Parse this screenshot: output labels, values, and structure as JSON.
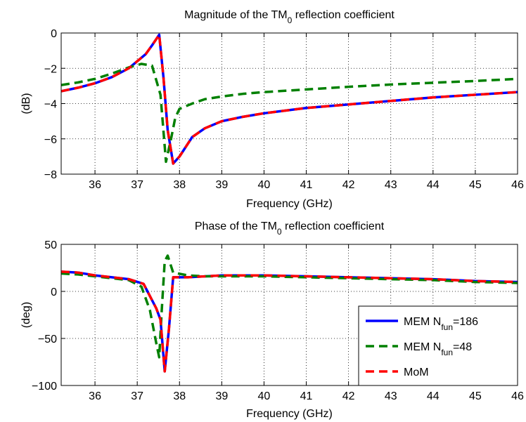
{
  "chart_data": [
    {
      "type": "line",
      "title": "Magnitude of the TM",
      "title_sub": "0",
      "title_suffix": " reflection coefficient",
      "xlabel": "Frequency (GHz)",
      "ylabel": "(dB)",
      "xlim": [
        35.2,
        46
      ],
      "ylim": [
        -8,
        0
      ],
      "xticks": [
        36,
        37,
        38,
        39,
        40,
        41,
        42,
        43,
        44,
        45,
        46
      ],
      "yticks": [
        -8,
        -6,
        -4,
        -2,
        0
      ],
      "ytick_labels": [
        "−8",
        "−6",
        "−4",
        "−2",
        "0"
      ],
      "grid": true,
      "series": [
        {
          "key": "mem186",
          "color": "#0000ff",
          "dash": "solid",
          "x": [
            35.2,
            35.6,
            36.0,
            36.4,
            36.8,
            37.2,
            37.35,
            37.52,
            37.62,
            37.72,
            37.85,
            38.0,
            38.3,
            38.6,
            39.0,
            39.5,
            40.0,
            41.0,
            42.0,
            43.0,
            44.0,
            45.0,
            46.0
          ],
          "y": [
            -3.3,
            -3.1,
            -2.85,
            -2.5,
            -2.0,
            -1.2,
            -0.7,
            -0.1,
            -2.5,
            -5.5,
            -7.4,
            -7.0,
            -5.9,
            -5.4,
            -5.0,
            -4.75,
            -4.55,
            -4.25,
            -4.05,
            -3.85,
            -3.65,
            -3.5,
            -3.35
          ]
        },
        {
          "key": "mem48",
          "color": "#008000",
          "dash": "dashed",
          "x": [
            35.2,
            35.6,
            36.0,
            36.4,
            36.8,
            37.1,
            37.35,
            37.55,
            37.68,
            37.8,
            37.9,
            38.0,
            38.3,
            38.6,
            39.0,
            39.5,
            40.0,
            41.0,
            42.0,
            43.0,
            44.0,
            45.0,
            46.0
          ],
          "y": [
            -2.95,
            -2.8,
            -2.6,
            -2.3,
            -1.95,
            -1.75,
            -1.85,
            -3.5,
            -7.3,
            -6.0,
            -4.8,
            -4.3,
            -4.0,
            -3.75,
            -3.6,
            -3.45,
            -3.35,
            -3.2,
            -3.05,
            -2.92,
            -2.82,
            -2.72,
            -2.6
          ]
        },
        {
          "key": "mom",
          "color": "#ff0000",
          "dash": "dashed",
          "x": [
            35.2,
            35.6,
            36.0,
            36.4,
            36.8,
            37.2,
            37.35,
            37.52,
            37.62,
            37.72,
            37.85,
            38.0,
            38.3,
            38.6,
            39.0,
            39.5,
            40.0,
            41.0,
            42.0,
            43.0,
            44.0,
            45.0,
            46.0
          ],
          "y": [
            -3.3,
            -3.1,
            -2.85,
            -2.5,
            -2.0,
            -1.2,
            -0.7,
            -0.1,
            -2.5,
            -5.5,
            -7.4,
            -7.0,
            -5.9,
            -5.4,
            -5.0,
            -4.75,
            -4.55,
            -4.25,
            -4.05,
            -3.85,
            -3.65,
            -3.5,
            -3.35
          ]
        }
      ]
    },
    {
      "type": "line",
      "title": "Phase of the TM",
      "title_sub": "0",
      "title_suffix": " reflection coefficient",
      "xlabel": "Frequency (GHz)",
      "ylabel": "(deg)",
      "xlim": [
        35.2,
        46
      ],
      "ylim": [
        -100,
        50
      ],
      "xticks": [
        36,
        37,
        38,
        39,
        40,
        41,
        42,
        43,
        44,
        45,
        46
      ],
      "yticks": [
        -100,
        -50,
        0,
        50
      ],
      "ytick_labels": [
        "−100",
        "−50",
        "0",
        "50"
      ],
      "grid": true,
      "legend_position": "bottom-right",
      "series": [
        {
          "key": "mem186",
          "name": "MEM N",
          "name_sub": "fun",
          "name_suffix": "=186",
          "color": "#0000ff",
          "dash": "solid",
          "x": [
            35.2,
            35.6,
            36.0,
            36.4,
            36.8,
            37.15,
            37.3,
            37.45,
            37.55,
            37.65,
            37.75,
            37.85,
            38.2,
            38.6,
            39.0,
            39.5,
            40.0,
            41.0,
            42.0,
            43.0,
            44.0,
            45.0,
            46.0
          ],
          "y": [
            21,
            20,
            17,
            15,
            13,
            8,
            -5,
            -18,
            -30,
            -85,
            -40,
            15,
            15,
            16,
            17,
            17,
            17,
            16,
            15,
            14,
            13,
            11,
            10
          ]
        },
        {
          "key": "mem48",
          "name": "MEM N",
          "name_sub": "fun",
          "name_suffix": "=48",
          "color": "#008000",
          "dash": "dashed",
          "x": [
            35.2,
            35.6,
            36.0,
            36.4,
            36.8,
            37.1,
            37.3,
            37.45,
            37.52,
            37.58,
            37.65,
            37.72,
            37.85,
            38.2,
            38.6,
            39.0,
            39.5,
            40.0,
            41.0,
            42.0,
            43.0,
            44.0,
            45.0,
            46.0
          ],
          "y": [
            19,
            18,
            16,
            14,
            12,
            5,
            -20,
            -55,
            -70,
            -20,
            32,
            38,
            20,
            17,
            16,
            16,
            16,
            16,
            15,
            14,
            13,
            12,
            10,
            9
          ]
        },
        {
          "key": "mom",
          "name": "MoM",
          "name_sub": "",
          "name_suffix": "",
          "color": "#ff0000",
          "dash": "dashed",
          "x": [
            35.2,
            35.6,
            36.0,
            36.4,
            36.8,
            37.15,
            37.3,
            37.45,
            37.55,
            37.65,
            37.75,
            37.85,
            38.2,
            38.6,
            39.0,
            39.5,
            40.0,
            41.0,
            42.0,
            43.0,
            44.0,
            45.0,
            46.0
          ],
          "y": [
            21,
            20,
            17,
            15,
            13,
            8,
            -5,
            -18,
            -30,
            -85,
            -40,
            15,
            15,
            16,
            17,
            17,
            17,
            16,
            15,
            14,
            13,
            11,
            10
          ]
        }
      ]
    }
  ]
}
